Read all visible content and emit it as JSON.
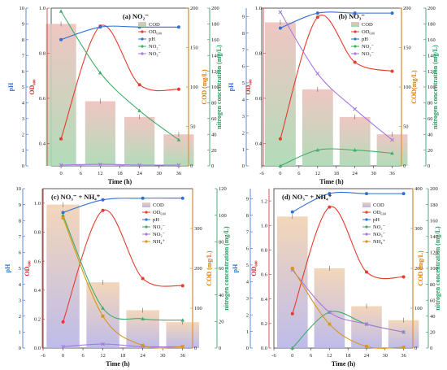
{
  "colors": {
    "ph": "#2f6fd6",
    "od": "#e53c2c",
    "no2": "#3fae6a",
    "no3": "#a678e0",
    "nh4": "#d9971a",
    "od_axis": "#c9302c",
    "cod_axis": "#e07b00",
    "nitrogen_axis": "#1f9a5a"
  },
  "chart_data": [
    {
      "type": "bar",
      "panel_label": "(a) NO₂⁻",
      "xlabel": "Time (h)",
      "x_ticks": [
        "0",
        "6",
        "12",
        "18",
        "24",
        "30",
        "36"
      ],
      "xlim": [
        -3,
        39
      ],
      "bar_colors": {
        "top": "#eec0bc",
        "bottom": "#a9d8b2"
      },
      "axes": {
        "ph": {
          "label": "pH",
          "ticks": [
            "0",
            "1",
            "2",
            "3",
            "4",
            "5",
            "6",
            "7",
            "8",
            "9",
            "10"
          ],
          "lim": [
            0,
            10
          ]
        },
        "od": {
          "label": "OD₆₀₀",
          "ticks": [
            "0.4",
            "0.6",
            "0.8",
            "1.0"
          ],
          "lim": [
            0.3,
            1.0
          ]
        },
        "cod": {
          "label": "COD (mg/L)",
          "ticks": [
            "0",
            "50",
            "100",
            "150",
            "200"
          ],
          "lim": [
            0,
            200
          ]
        },
        "nitrogen": {
          "label": "nitrogen concentration (mg/L)",
          "ticks": [
            "0",
            "20",
            "40",
            "60",
            "80",
            "100",
            "120",
            "140",
            "160",
            "180",
            "200"
          ],
          "lim": [
            0,
            200
          ]
        }
      },
      "bars": {
        "name": "COD",
        "x": [
          0,
          12,
          24,
          36
        ],
        "values": [
          180,
          82,
          62,
          40
        ]
      },
      "series": [
        {
          "name": "OD₆₀₀",
          "key": "od",
          "axis": "od",
          "x": [
            0,
            12,
            24,
            36
          ],
          "values": [
            0.42,
            0.92,
            0.66,
            0.64
          ]
        },
        {
          "name": "pH",
          "key": "ph",
          "axis": "ph",
          "x": [
            0,
            12,
            24,
            36
          ],
          "values": [
            8.0,
            8.8,
            8.8,
            8.8
          ]
        },
        {
          "name": "NO₂⁻",
          "key": "no2",
          "axis": "nitrogen",
          "x": [
            0,
            12,
            24,
            36
          ],
          "values": [
            196,
            118,
            70,
            33
          ]
        },
        {
          "name": "NO₃⁻",
          "key": "no3",
          "axis": "nitrogen",
          "x": [
            0,
            12,
            24,
            36
          ],
          "values": [
            1,
            2,
            1,
            1
          ]
        }
      ]
    },
    {
      "type": "bar",
      "panel_label": "(b) NO₃⁻",
      "xlabel": "Time (h)",
      "x_ticks": [
        "-6",
        "0",
        "6",
        "12",
        "18",
        "24",
        "30",
        "36"
      ],
      "xlim": [
        -6,
        39
      ],
      "bar_colors": {
        "top": "#eec0bc",
        "bottom": "#a9d8b2"
      },
      "axes": {
        "ph": {
          "label": "pH",
          "ticks": [
            "0",
            "1",
            "2",
            "3",
            "4",
            "5",
            "6",
            "7",
            "8",
            "9"
          ],
          "lim": [
            0,
            9.5
          ]
        },
        "od": {
          "label": "OD₆₀₀",
          "ticks": [
            "0.4",
            "0.6",
            "0.8",
            "1.0"
          ],
          "lim": [
            0.3,
            1.0
          ]
        },
        "cod": {
          "label": "COD(mg/L)",
          "ticks": [
            "0",
            "50",
            "100",
            "150",
            "200"
          ],
          "lim": [
            0,
            200
          ]
        },
        "nitrogen": {
          "label": "nitrogen concentration (mg/L)",
          "ticks": [
            "0",
            "20",
            "40",
            "60",
            "80",
            "100",
            "120",
            "140",
            "160",
            "180",
            "200"
          ],
          "lim": [
            0,
            200
          ]
        }
      },
      "bars": {
        "name": "COD",
        "x": [
          0,
          12,
          24,
          36
        ],
        "values": [
          182,
          97,
          62,
          40
        ]
      },
      "series": [
        {
          "name": "OD₆₀₀",
          "key": "od",
          "axis": "od",
          "x": [
            0,
            12,
            24,
            36
          ],
          "values": [
            0.42,
            0.96,
            0.76,
            0.72
          ]
        },
        {
          "name": "pH",
          "key": "ph",
          "axis": "ph",
          "x": [
            0,
            12,
            24,
            36
          ],
          "values": [
            8.3,
            9.2,
            9.2,
            9.2
          ]
        },
        {
          "name": "NO₂⁻",
          "key": "no2",
          "axis": "nitrogen",
          "x": [
            0,
            12,
            24,
            36
          ],
          "values": [
            0,
            20,
            20,
            16
          ]
        },
        {
          "name": "NO₃⁻",
          "key": "no3",
          "axis": "nitrogen",
          "x": [
            0,
            12,
            24,
            36
          ],
          "values": [
            195,
            117,
            72,
            33
          ]
        }
      ]
    },
    {
      "type": "bar",
      "panel_label": "(c) NO₃⁻ + NH₄⁺",
      "xlabel": "Time (h)",
      "x_ticks": [
        "-6",
        "0",
        "6",
        "12",
        "18",
        "24",
        "30",
        "36"
      ],
      "xlim": [
        -6,
        39
      ],
      "bar_colors": {
        "top": "#f2d2b2",
        "bottom": "#b7b4e8"
      },
      "axes": {
        "ph": {
          "label": "pH",
          "ticks": [
            "0",
            "1",
            "2",
            "3",
            "4",
            "5",
            "6",
            "7",
            "8",
            "9",
            "10"
          ],
          "lim": [
            0,
            10
          ]
        },
        "od": {
          "label": "OD₆₀₀",
          "ticks": [
            "0.0",
            "0.2",
            "0.4",
            "0.6",
            "0.8",
            "1.0"
          ],
          "lim": [
            0,
            1.1
          ]
        },
        "cod": {
          "label": "COD (mg/L)",
          "ticks": [
            "0",
            "100",
            "200",
            "300"
          ],
          "lim": [
            0,
            400
          ]
        },
        "nitrogen": {
          "label": "nitrogen concentration (mg/L)",
          "ticks": [
            "0",
            "20",
            "40",
            "60",
            "80",
            "100",
            "120"
          ],
          "lim": [
            0,
            120
          ]
        }
      },
      "bars": {
        "name": "COD",
        "x": [
          0,
          12,
          24,
          36
        ],
        "values": [
          360,
          165,
          95,
          65
        ]
      },
      "series": [
        {
          "name": "OD₆₀₀",
          "key": "od",
          "axis": "od",
          "x": [
            0,
            12,
            24,
            36
          ],
          "values": [
            0.18,
            0.95,
            0.48,
            0.43
          ]
        },
        {
          "name": "pH",
          "key": "ph",
          "axis": "ph",
          "x": [
            0,
            12,
            24,
            36
          ],
          "values": [
            8.5,
            9.3,
            9.4,
            9.4
          ]
        },
        {
          "name": "NO₂⁻",
          "key": "no2",
          "axis": "nitrogen",
          "x": [
            0,
            12,
            24,
            36
          ],
          "values": [
            100,
            30,
            22,
            21
          ]
        },
        {
          "name": "NO₃⁻",
          "key": "no3",
          "axis": "nitrogen",
          "x": [
            0,
            12,
            24,
            36
          ],
          "values": [
            1,
            3,
            1,
            1
          ]
        },
        {
          "name": "NH₄⁺",
          "key": "nh4",
          "axis": "nitrogen",
          "x": [
            0,
            12,
            24,
            36
          ],
          "values": [
            98,
            24,
            2,
            1
          ]
        }
      ]
    },
    {
      "type": "bar",
      "panel_label": "(d) NO₃⁻ + NH₄⁺",
      "xlabel": "Time (h)",
      "x_ticks": [
        "-6",
        "0",
        "6",
        "12",
        "18",
        "24",
        "30",
        "36"
      ],
      "xlim": [
        -6,
        39
      ],
      "bar_colors": {
        "top": "#f2d2b2",
        "bottom": "#b7b4e8"
      },
      "axes": {
        "ph": {
          "label": "pH",
          "ticks": [
            "0",
            "1",
            "2",
            "3",
            "4",
            "5",
            "6",
            "7",
            "8",
            "9"
          ],
          "lim": [
            0,
            9.6
          ]
        },
        "od": {
          "label": "OD₆₀₀",
          "ticks": [
            "0.0",
            "0.2",
            "0.4",
            "0.6",
            "0.8",
            "1.0",
            "1.2"
          ],
          "lim": [
            0,
            1.3
          ]
        },
        "cod": {
          "label": "COD (mg/L)",
          "ticks": [
            "0",
            "100",
            "200",
            "300",
            "400"
          ],
          "lim": [
            0,
            400
          ]
        },
        "nitrogen": {
          "label": "nitrogen concentration (mg/L)",
          "ticks": [
            "0",
            "20",
            "40",
            "60",
            "80",
            "100",
            "120",
            "140",
            "160",
            "180",
            "200"
          ],
          "lim": [
            0,
            200
          ]
        }
      },
      "bars": {
        "name": "COD",
        "x": [
          0,
          12,
          24,
          36
        ],
        "values": [
          330,
          200,
          105,
          70
        ]
      },
      "series": [
        {
          "name": "OD₆₀₀",
          "key": "od",
          "axis": "od",
          "x": [
            0,
            12,
            24,
            36
          ],
          "values": [
            0.28,
            1.15,
            0.62,
            0.58
          ]
        },
        {
          "name": "pH",
          "key": "ph",
          "axis": "ph",
          "x": [
            0,
            12,
            24,
            36
          ],
          "values": [
            8.2,
            9.3,
            9.3,
            9.3
          ]
        },
        {
          "name": "NO₂⁻",
          "key": "no2",
          "axis": "nitrogen",
          "x": [
            0,
            12,
            24,
            36
          ],
          "values": [
            0,
            45,
            30,
            20
          ]
        },
        {
          "name": "NO₃⁻",
          "key": "no3",
          "axis": "nitrogen",
          "x": [
            0,
            12,
            24,
            36
          ],
          "values": [
            98,
            45,
            30,
            20
          ]
        },
        {
          "name": "NH₄⁺",
          "key": "nh4",
          "axis": "nitrogen",
          "x": [
            0,
            12,
            24,
            36
          ],
          "values": [
            100,
            30,
            2,
            1
          ]
        }
      ]
    }
  ]
}
